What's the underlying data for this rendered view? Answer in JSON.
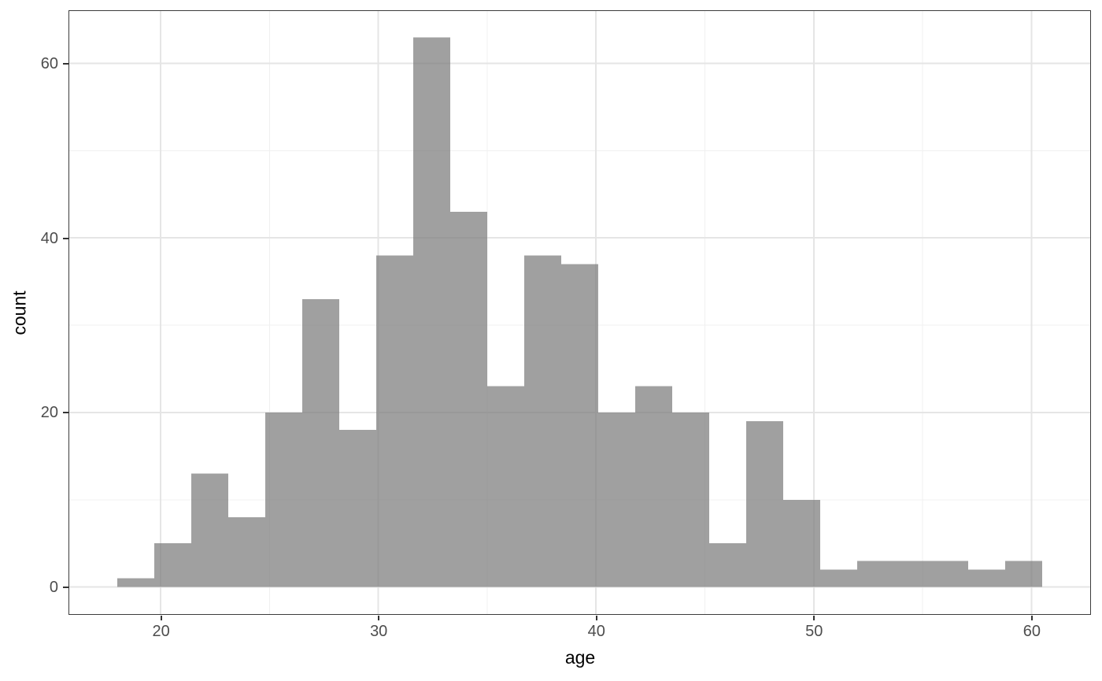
{
  "chart_data": {
    "type": "bar",
    "subtype": "histogram",
    "title": "",
    "xlabel": "age",
    "ylabel": "count",
    "bin_start": 18.0,
    "bin_width": 1.7,
    "counts": [
      1,
      5,
      13,
      8,
      20,
      33,
      18,
      38,
      63,
      43,
      23,
      38,
      37,
      20,
      23,
      20,
      5,
      19,
      10,
      2,
      3,
      3,
      3,
      2,
      3
    ],
    "x_ticks": [
      20,
      30,
      40,
      50,
      60
    ],
    "y_ticks": [
      0,
      20,
      40,
      60
    ],
    "x_minor_gridlines": [
      25,
      35,
      45,
      55
    ],
    "y_minor_gridlines": [
      10,
      30,
      50
    ],
    "xlim": [
      15.8,
      62.7
    ],
    "ylim": [
      -3.1,
      66.0
    ],
    "grid": true,
    "legend": "none",
    "colors": {
      "bar_fill": "#7c7c7c",
      "bar_opacity": 0.72,
      "grid_major": "#e5e5e5",
      "grid_minor": "#f0f0f0",
      "panel_border": "#3c3c3c",
      "tick_mark": "#333333",
      "tick_label": "#4d4d4d",
      "axis_title": "#000000",
      "background": "#ffffff"
    }
  }
}
